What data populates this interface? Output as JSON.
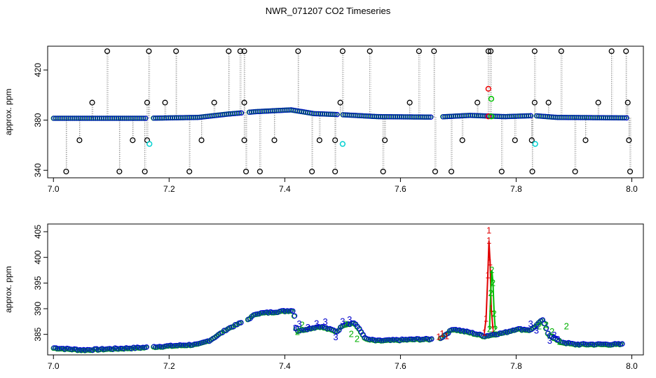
{
  "title": "NWR_071207  CO2 Timeseries",
  "chart_data": [
    {
      "type": "scatter",
      "ylabel": "approx. ppm",
      "xlim": [
        6.99,
        8.02
      ],
      "ylim": [
        334,
        439
      ],
      "xticks": [
        "7.0",
        "7.2",
        "7.4",
        "7.6",
        "7.8",
        "8.0"
      ],
      "yticks": [
        "340",
        "380",
        "420"
      ],
      "baseline": [
        [
          7.0,
          381.5
        ],
        [
          7.16,
          381.5
        ],
        [
          7.25,
          382.2
        ],
        [
          7.3,
          384.8
        ],
        [
          7.35,
          386.8
        ],
        [
          7.41,
          388.2
        ],
        [
          7.45,
          385.2
        ],
        [
          7.5,
          384.3
        ],
        [
          7.56,
          382.8
        ],
        [
          7.66,
          382.4
        ],
        [
          7.72,
          383.8
        ],
        [
          7.78,
          382.8
        ],
        [
          7.83,
          383.6
        ],
        [
          7.87,
          382.2
        ],
        [
          7.99,
          381.8
        ]
      ],
      "gaps": [
        [
          7.16,
          7.17
        ],
        [
          7.325,
          7.335
        ],
        [
          7.49,
          7.5
        ],
        [
          7.655,
          7.67
        ],
        [
          7.825,
          7.835
        ]
      ],
      "high_outliers": [
        [
          7.093,
          435
        ],
        [
          7.165,
          435
        ],
        [
          7.212,
          435
        ],
        [
          7.303,
          435
        ],
        [
          7.323,
          435
        ],
        [
          7.33,
          435
        ],
        [
          7.423,
          435
        ],
        [
          7.5,
          435
        ],
        [
          7.547,
          435
        ],
        [
          7.632,
          435
        ],
        [
          7.658,
          435
        ],
        [
          7.752,
          435
        ],
        [
          7.756,
          435
        ],
        [
          7.832,
          435
        ],
        [
          7.878,
          435
        ],
        [
          7.965,
          435
        ],
        [
          7.99,
          435
        ]
      ],
      "mid_outliers": [
        [
          7.067,
          394
        ],
        [
          7.162,
          394
        ],
        [
          7.193,
          394
        ],
        [
          7.278,
          394
        ],
        [
          7.33,
          394
        ],
        [
          7.496,
          394
        ],
        [
          7.616,
          394
        ],
        [
          7.733,
          394
        ],
        [
          7.832,
          394
        ],
        [
          7.856,
          394
        ],
        [
          7.942,
          394
        ],
        [
          7.993,
          394
        ]
      ],
      "low_outliers": [
        [
          7.045,
          364
        ],
        [
          7.137,
          364
        ],
        [
          7.162,
          364
        ],
        [
          7.256,
          364
        ],
        [
          7.33,
          364
        ],
        [
          7.382,
          364
        ],
        [
          7.46,
          364
        ],
        [
          7.487,
          364
        ],
        [
          7.573,
          364
        ],
        [
          7.707,
          364
        ],
        [
          7.798,
          364
        ],
        [
          7.827,
          364
        ],
        [
          7.92,
          364
        ],
        [
          7.995,
          364
        ]
      ],
      "bottom_outliers": [
        [
          7.022,
          339
        ],
        [
          7.114,
          339
        ],
        [
          7.158,
          339
        ],
        [
          7.235,
          339
        ],
        [
          7.333,
          339
        ],
        [
          7.357,
          339
        ],
        [
          7.447,
          339
        ],
        [
          7.487,
          339
        ],
        [
          7.57,
          339
        ],
        [
          7.66,
          339
        ],
        [
          7.688,
          339
        ],
        [
          7.775,
          339
        ],
        [
          7.828,
          339
        ],
        [
          7.902,
          339
        ],
        [
          7.997,
          339
        ]
      ],
      "cyan_points": [
        [
          7.166,
          361
        ],
        [
          7.5,
          361
        ],
        [
          7.833,
          361
        ]
      ],
      "red_points": [
        [
          7.752,
          405
        ],
        [
          7.752,
          383
        ]
      ],
      "green_points": [
        [
          7.757,
          397
        ],
        [
          7.757,
          383
        ]
      ]
    },
    {
      "type": "scatter",
      "ylabel": "approx. ppm",
      "xlim": [
        6.99,
        8.02
      ],
      "ylim": [
        381,
        406.5
      ],
      "xticks": [
        "7.0",
        "7.2",
        "7.4",
        "7.6",
        "7.8",
        "8.0"
      ],
      "yticks": [
        "385",
        "390",
        "395",
        "400",
        "405"
      ],
      "series": [
        {
          "label": "1",
          "color": "#e00000",
          "points": [
            [
              7.666,
              384.5
            ],
            [
              7.672,
              385.1
            ],
            [
              7.68,
              384.6
            ],
            [
              7.745,
              385.3
            ],
            [
              7.748,
              388.0
            ],
            [
              7.751,
              396.5
            ],
            [
              7.753,
              403.2
            ],
            [
              7.755,
              399.0
            ],
            [
              7.757,
              390.0
            ],
            [
              7.76,
              386.0
            ]
          ]
        },
        {
          "label": "2",
          "color": "#00b000",
          "points": [
            [
              7.422,
              385.4
            ],
            [
              7.43,
              386.8
            ],
            [
              7.505,
              386.9
            ],
            [
              7.515,
              385.0
            ],
            [
              7.525,
              384.1
            ],
            [
              7.754,
              386.0
            ],
            [
              7.756,
              393.0
            ],
            [
              7.758,
              397.5
            ],
            [
              7.76,
              395.0
            ],
            [
              7.762,
              389.0
            ],
            [
              7.764,
              386.0
            ],
            [
              7.84,
              386.5
            ],
            [
              7.852,
              386.8
            ],
            [
              7.862,
              385.5
            ],
            [
              7.875,
              383.5
            ],
            [
              7.887,
              386.5
            ]
          ]
        },
        {
          "label": "3",
          "color": "#0000cc",
          "points": [
            [
              7.418,
              386.2
            ],
            [
              7.425,
              387.0
            ],
            [
              7.44,
              386.3
            ],
            [
              7.455,
              387.1
            ],
            [
              7.47,
              387.4
            ],
            [
              7.488,
              384.4
            ],
            [
              7.5,
              387.5
            ],
            [
              7.512,
              387.8
            ],
            [
              7.825,
              387.0
            ],
            [
              7.835,
              385.7
            ],
            [
              7.858,
              383.7
            ],
            [
              7.866,
              384.8
            ],
            [
              7.872,
              384.0
            ]
          ]
        }
      ]
    }
  ]
}
